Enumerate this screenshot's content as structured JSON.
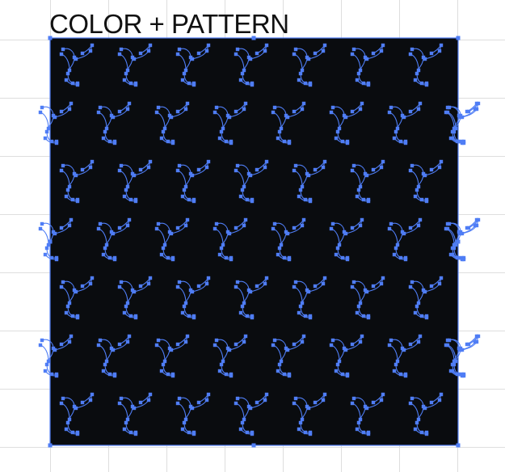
{
  "canvas": {
    "title": "COLOR + PATTERN"
  },
  "pattern": {
    "fill_color": "#0a0c0f",
    "selection_color": "#4f7df5",
    "grid_color": "#dedede",
    "motif_icon": "swirl-pinwheel-icon"
  }
}
